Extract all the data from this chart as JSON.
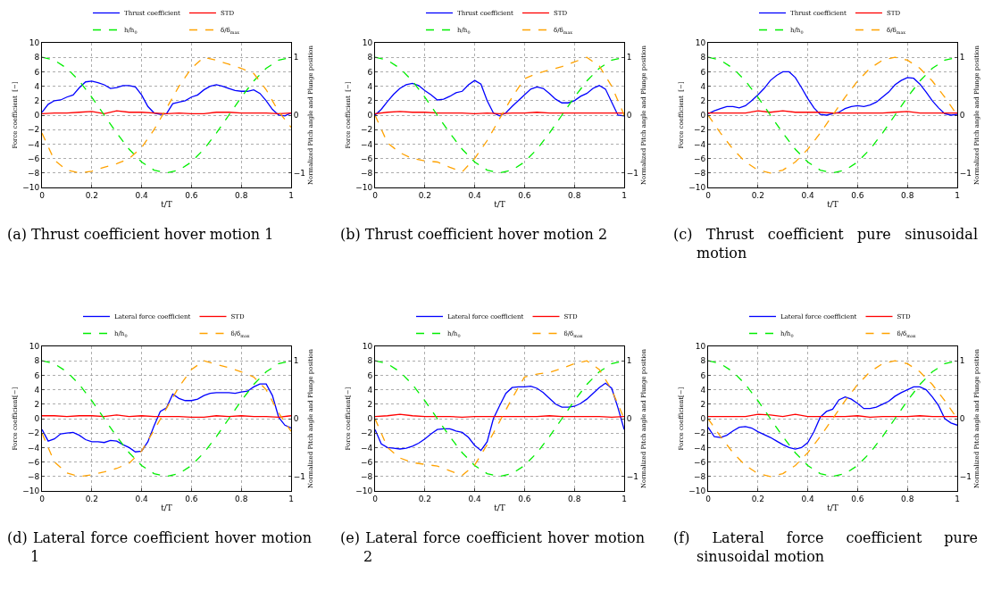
{
  "chart_data": [
    {
      "type": "line",
      "annotations": [
        "(a) Thrust coefficient hover motion 1"
      ],
      "xlabel": "t/T",
      "ylabel": "Force coefficient  [−]",
      "y2label": "Normalized Pitch angle and Plunge position",
      "xlim": [
        0,
        1
      ],
      "xticks": [
        0,
        0.2,
        0.4,
        0.6,
        0.8,
        1
      ],
      "ylim": [
        -10,
        10
      ],
      "yticks": [
        -10,
        -8,
        -6,
        -4,
        -2,
        0,
        2,
        4,
        6,
        8,
        10
      ],
      "y2lim": [
        -1.25,
        1.25
      ],
      "y2ticks": [
        -1,
        0,
        1
      ],
      "grid": true,
      "legend": "top",
      "x": [
        0,
        0.025,
        0.05,
        0.075,
        0.1,
        0.125,
        0.15,
        0.175,
        0.2,
        0.225,
        0.25,
        0.275,
        0.3,
        0.325,
        0.35,
        0.375,
        0.4,
        0.425,
        0.45,
        0.475,
        0.5,
        0.525,
        0.55,
        0.575,
        0.6,
        0.625,
        0.65,
        0.675,
        0.7,
        0.725,
        0.75,
        0.775,
        0.8,
        0.825,
        0.85,
        0.875,
        0.9,
        0.925,
        0.95,
        0.975,
        1
      ],
      "series": [
        {
          "name": "Thrust coefficient",
          "color": "#0000ff",
          "line_style": "solid",
          "values": [
            0.4,
            1.5,
            2.0,
            2.1,
            2.5,
            2.8,
            3.8,
            4.6,
            4.7,
            4.5,
            4.2,
            3.7,
            3.8,
            4.1,
            4.1,
            3.9,
            2.8,
            1.2,
            0.3,
            0.1,
            0.2,
            1.6,
            1.8,
            2.0,
            2.5,
            2.8,
            3.5,
            4.0,
            4.2,
            4.0,
            3.7,
            3.4,
            3.3,
            3.3,
            3.5,
            3.0,
            2.0,
            0.8,
            0.0,
            -0.1,
            0.3
          ]
        },
        {
          "name": "STD",
          "color": "#ff0000",
          "line_style": "solid",
          "x": [
            0,
            0.05,
            0.1,
            0.15,
            0.2,
            0.25,
            0.3,
            0.35,
            0.4,
            0.45,
            0.5,
            0.55,
            0.6,
            0.65,
            0.7,
            0.75,
            0.8,
            0.85,
            0.9,
            0.95,
            1
          ],
          "values": [
            0.2,
            0.3,
            0.3,
            0.4,
            0.5,
            0.2,
            0.6,
            0.4,
            0.4,
            0.3,
            0.2,
            0.3,
            0.2,
            0.2,
            0.4,
            0.4,
            0.3,
            0.3,
            0.3,
            0.2,
            0.3
          ]
        },
        {
          "name": "h/h$_{0}$",
          "color": "#00ee00",
          "line_style": "dashed",
          "axis": "y2",
          "x": [
            0,
            0.05,
            0.1,
            0.15,
            0.2,
            0.25,
            0.3,
            0.35,
            0.4,
            0.45,
            0.5,
            0.55,
            0.6,
            0.65,
            0.7,
            0.75,
            0.8,
            0.85,
            0.9,
            0.95,
            1
          ],
          "values": [
            1,
            0.95,
            0.81,
            0.59,
            0.31,
            0,
            -0.31,
            -0.59,
            -0.81,
            -0.95,
            -1,
            -0.95,
            -0.81,
            -0.59,
            -0.31,
            0,
            0.31,
            0.59,
            0.81,
            0.95,
            1
          ]
        },
        {
          "name": "δ/δ$_{max}$",
          "color": "#ffa200",
          "line_style": "dashed",
          "axis": "y2",
          "x": [
            0,
            0.05,
            0.1,
            0.15,
            0.2,
            0.25,
            0.3,
            0.35,
            0.4,
            0.45,
            0.5,
            0.55,
            0.6,
            0.65,
            0.7,
            0.75,
            0.8,
            0.85,
            0.9,
            0.95,
            1
          ],
          "values": [
            -0.31,
            -0.78,
            -0.95,
            -1,
            -0.97,
            -0.9,
            -0.84,
            -0.75,
            -0.56,
            -0.25,
            0.12,
            0.5,
            0.81,
            1,
            0.95,
            0.88,
            0.81,
            0.72,
            0.44,
            0.06,
            -0.21
          ]
        }
      ]
    },
    {
      "type": "line",
      "annotations": [
        "(b) Thrust coefficient hover motion 2"
      ],
      "xlabel": "t/T",
      "ylabel": "Force coefficient  [−]",
      "y2label": "Normalized Pitch angle and Plunge position",
      "xlim": [
        0,
        1
      ],
      "xticks": [
        0,
        0.2,
        0.4,
        0.6,
        0.8,
        1
      ],
      "ylim": [
        -10,
        10
      ],
      "yticks": [
        -10,
        -8,
        -6,
        -4,
        -2,
        0,
        2,
        4,
        6,
        8,
        10
      ],
      "y2lim": [
        -1.25,
        1.25
      ],
      "y2ticks": [
        -1,
        0,
        1
      ],
      "grid": true,
      "legend": "top",
      "x": [
        0,
        0.025,
        0.05,
        0.075,
        0.1,
        0.125,
        0.15,
        0.175,
        0.2,
        0.225,
        0.25,
        0.275,
        0.3,
        0.325,
        0.35,
        0.375,
        0.4,
        0.425,
        0.45,
        0.475,
        0.5,
        0.525,
        0.55,
        0.575,
        0.6,
        0.625,
        0.65,
        0.675,
        0.7,
        0.725,
        0.75,
        0.775,
        0.8,
        0.825,
        0.85,
        0.875,
        0.9,
        0.925,
        0.95,
        0.975,
        1
      ],
      "series": [
        {
          "name": "Thrust coefficient",
          "color": "#0000ff",
          "line_style": "solid",
          "values": [
            0.0,
            0.8,
            1.9,
            2.9,
            3.7,
            4.2,
            4.4,
            4.1,
            3.4,
            2.8,
            2.1,
            2.2,
            2.6,
            3.1,
            3.3,
            4.2,
            4.8,
            4.3,
            2.0,
            0.3,
            -0.1,
            0.3,
            1.2,
            2.0,
            2.8,
            3.6,
            3.9,
            3.7,
            3.0,
            2.2,
            1.7,
            1.7,
            2.0,
            2.6,
            3.0,
            3.7,
            4.1,
            3.6,
            1.8,
            0.0,
            -0.1
          ]
        },
        {
          "name": "STD",
          "color": "#ff0000",
          "line_style": "solid",
          "x": [
            0,
            0.05,
            0.1,
            0.15,
            0.2,
            0.25,
            0.3,
            0.35,
            0.4,
            0.45,
            0.5,
            0.55,
            0.6,
            0.65,
            0.7,
            0.75,
            0.8,
            0.85,
            0.9,
            0.95,
            1
          ],
          "values": [
            0.2,
            0.4,
            0.5,
            0.4,
            0.4,
            0.3,
            0.3,
            0.3,
            0.2,
            0.3,
            0.2,
            0.3,
            0.3,
            0.4,
            0.3,
            0.3,
            0.3,
            0.3,
            0.3,
            0.3,
            0.3
          ]
        },
        {
          "name": "h/h$_{0}$",
          "color": "#00ee00",
          "line_style": "dashed",
          "axis": "y2",
          "x": [
            0,
            0.05,
            0.1,
            0.15,
            0.2,
            0.25,
            0.3,
            0.35,
            0.4,
            0.45,
            0.5,
            0.55,
            0.6,
            0.65,
            0.7,
            0.75,
            0.8,
            0.85,
            0.9,
            0.95,
            1
          ],
          "values": [
            1,
            0.95,
            0.81,
            0.59,
            0.31,
            0,
            -0.31,
            -0.59,
            -0.81,
            -0.95,
            -1,
            -0.95,
            -0.81,
            -0.59,
            -0.31,
            0,
            0.31,
            0.59,
            0.81,
            0.95,
            1
          ]
        },
        {
          "name": "δ/δ$_{max}$",
          "color": "#ffa200",
          "line_style": "dashed",
          "axis": "y2",
          "x": [
            0,
            0.05,
            0.1,
            0.15,
            0.2,
            0.25,
            0.3,
            0.35,
            0.4,
            0.45,
            0.5,
            0.55,
            0.6,
            0.65,
            0.7,
            0.75,
            0.8,
            0.85,
            0.9,
            0.95,
            1
          ],
          "values": [
            0,
            -0.48,
            -0.65,
            -0.75,
            -0.79,
            -0.81,
            -0.9,
            -0.98,
            -0.75,
            -0.44,
            -0.06,
            0.31,
            0.63,
            0.72,
            0.78,
            0.84,
            0.92,
            1.0,
            0.85,
            0.5,
            0.0
          ]
        }
      ]
    },
    {
      "type": "line",
      "annotations": [
        "(c) Thrust coefficient pure sinusoidal motion"
      ],
      "xlabel": "t/T",
      "ylabel": "Force coefficient  [−]",
      "y2label": "Normalized Pitch angle and Plunge position",
      "xlim": [
        0,
        1
      ],
      "xticks": [
        0,
        0.2,
        0.4,
        0.6,
        0.8,
        1
      ],
      "ylim": [
        -10,
        10
      ],
      "yticks": [
        -10,
        -8,
        -6,
        -4,
        -2,
        0,
        2,
        4,
        6,
        8,
        10
      ],
      "y2lim": [
        -1.25,
        1.25
      ],
      "y2ticks": [
        -1,
        0,
        1
      ],
      "grid": true,
      "legend": "top",
      "x": [
        0,
        0.025,
        0.05,
        0.075,
        0.1,
        0.125,
        0.15,
        0.175,
        0.2,
        0.225,
        0.25,
        0.275,
        0.3,
        0.325,
        0.35,
        0.375,
        0.4,
        0.425,
        0.45,
        0.475,
        0.5,
        0.525,
        0.55,
        0.575,
        0.6,
        0.625,
        0.65,
        0.675,
        0.7,
        0.725,
        0.75,
        0.775,
        0.8,
        0.825,
        0.85,
        0.875,
        0.9,
        0.925,
        0.95,
        0.975,
        1
      ],
      "series": [
        {
          "name": "Thrust coefficient",
          "color": "#0000ff",
          "line_style": "solid",
          "values": [
            0.2,
            0.6,
            0.9,
            1.2,
            1.2,
            1.0,
            1.3,
            2.0,
            2.8,
            3.7,
            4.8,
            5.5,
            6.0,
            6.0,
            5.2,
            3.8,
            2.3,
            1.0,
            0.1,
            0.0,
            0.2,
            0.4,
            0.9,
            1.2,
            1.3,
            1.2,
            1.4,
            1.8,
            2.5,
            3.2,
            4.2,
            4.8,
            5.2,
            5.1,
            4.3,
            3.2,
            2.0,
            1.0,
            0.2,
            0.0,
            0.1
          ]
        },
        {
          "name": "STD",
          "color": "#ff0000",
          "line_style": "solid",
          "x": [
            0,
            0.05,
            0.1,
            0.15,
            0.2,
            0.25,
            0.3,
            0.35,
            0.4,
            0.45,
            0.5,
            0.55,
            0.6,
            0.65,
            0.7,
            0.75,
            0.8,
            0.85,
            0.9,
            0.95,
            1
          ],
          "values": [
            0.3,
            0.3,
            0.3,
            0.3,
            0.6,
            0.4,
            0.6,
            0.4,
            0.4,
            0.4,
            0.3,
            0.3,
            0.3,
            0.3,
            0.3,
            0.4,
            0.5,
            0.3,
            0.3,
            0.3,
            0.3
          ]
        },
        {
          "name": "h/h$_{0}$",
          "color": "#00ee00",
          "line_style": "dashed",
          "axis": "y2",
          "x": [
            0,
            0.05,
            0.1,
            0.15,
            0.2,
            0.25,
            0.3,
            0.35,
            0.4,
            0.45,
            0.5,
            0.55,
            0.6,
            0.65,
            0.7,
            0.75,
            0.8,
            0.85,
            0.9,
            0.95,
            1
          ],
          "values": [
            1,
            0.95,
            0.81,
            0.59,
            0.31,
            0,
            -0.31,
            -0.59,
            -0.81,
            -0.95,
            -1,
            -0.95,
            -0.81,
            -0.59,
            -0.31,
            0,
            0.31,
            0.59,
            0.81,
            0.95,
            1
          ]
        },
        {
          "name": "δ/δ$_{max}$",
          "color": "#ffa200",
          "line_style": "dashed",
          "axis": "y2",
          "x": [
            0,
            0.05,
            0.1,
            0.15,
            0.2,
            0.25,
            0.3,
            0.35,
            0.4,
            0.45,
            0.5,
            0.55,
            0.6,
            0.65,
            0.7,
            0.75,
            0.8,
            0.85,
            0.9,
            0.95,
            1
          ],
          "values": [
            0,
            -0.31,
            -0.59,
            -0.81,
            -0.95,
            -1,
            -0.95,
            -0.81,
            -0.59,
            -0.31,
            0,
            0.31,
            0.59,
            0.81,
            0.95,
            1,
            0.95,
            0.81,
            0.59,
            0.31,
            0
          ]
        }
      ]
    },
    {
      "type": "line",
      "annotations": [
        "(d) Lateral force coefficient hover motion 1"
      ],
      "xlabel": "t/T",
      "ylabel": "Force coefficient[−]",
      "y2label": "Normalized Pitch angle and Plunge position",
      "xlim": [
        0,
        1
      ],
      "xticks": [
        0,
        0.2,
        0.4,
        0.6,
        0.8,
        1
      ],
      "ylim": [
        -10,
        10
      ],
      "yticks": [
        -10,
        -8,
        -6,
        -4,
        -2,
        0,
        2,
        4,
        6,
        8,
        10
      ],
      "y2lim": [
        -1.25,
        1.25
      ],
      "y2ticks": [
        -1,
        0,
        1
      ],
      "grid": true,
      "legend": "top",
      "x": [
        0,
        0.025,
        0.05,
        0.075,
        0.1,
        0.125,
        0.15,
        0.175,
        0.2,
        0.225,
        0.25,
        0.275,
        0.3,
        0.325,
        0.35,
        0.375,
        0.4,
        0.425,
        0.45,
        0.475,
        0.5,
        0.525,
        0.55,
        0.575,
        0.6,
        0.625,
        0.65,
        0.675,
        0.7,
        0.725,
        0.75,
        0.775,
        0.8,
        0.825,
        0.85,
        0.875,
        0.9,
        0.925,
        0.95,
        0.975,
        1
      ],
      "series": [
        {
          "name": "Lateral force coefficient",
          "color": "#0000ff",
          "line_style": "solid",
          "values": [
            -1.5,
            -3.1,
            -2.8,
            -2.1,
            -2.0,
            -1.9,
            -2.3,
            -2.9,
            -3.2,
            -3.2,
            -3.3,
            -3.0,
            -3.1,
            -3.6,
            -4.0,
            -4.6,
            -4.5,
            -3.2,
            -1.0,
            1.0,
            1.5,
            3.4,
            2.8,
            2.5,
            2.5,
            2.7,
            3.2,
            3.5,
            3.6,
            3.6,
            3.6,
            3.5,
            3.7,
            3.8,
            4.4,
            4.8,
            4.8,
            3.2,
            0.2,
            -0.9,
            -1.3
          ]
        },
        {
          "name": "STD",
          "color": "#ff0000",
          "line_style": "solid",
          "x": [
            0,
            0.05,
            0.1,
            0.15,
            0.2,
            0.25,
            0.3,
            0.35,
            0.4,
            0.45,
            0.5,
            0.55,
            0.6,
            0.65,
            0.7,
            0.75,
            0.8,
            0.85,
            0.9,
            0.95,
            1
          ],
          "values": [
            0.4,
            0.4,
            0.3,
            0.4,
            0.4,
            0.3,
            0.5,
            0.3,
            0.4,
            0.3,
            0.3,
            0.3,
            0.2,
            0.2,
            0.4,
            0.3,
            0.4,
            0.3,
            0.3,
            0.2,
            0.4
          ]
        },
        {
          "name": "h/h$_{0}$",
          "color": "#00ee00",
          "line_style": "dashed",
          "axis": "y2",
          "x": [
            0,
            0.05,
            0.1,
            0.15,
            0.2,
            0.25,
            0.3,
            0.35,
            0.4,
            0.45,
            0.5,
            0.55,
            0.6,
            0.65,
            0.7,
            0.75,
            0.8,
            0.85,
            0.9,
            0.95,
            1
          ],
          "values": [
            1,
            0.95,
            0.81,
            0.59,
            0.31,
            0,
            -0.31,
            -0.59,
            -0.81,
            -0.95,
            -1,
            -0.95,
            -0.81,
            -0.59,
            -0.31,
            0,
            0.31,
            0.59,
            0.81,
            0.95,
            1
          ]
        },
        {
          "name": "δ/δ$_{max}$",
          "color": "#ffa200",
          "line_style": "dashed",
          "axis": "y2",
          "x": [
            0,
            0.05,
            0.1,
            0.15,
            0.2,
            0.25,
            0.3,
            0.35,
            0.4,
            0.45,
            0.5,
            0.55,
            0.6,
            0.65,
            0.7,
            0.75,
            0.8,
            0.85,
            0.9,
            0.95,
            1
          ],
          "values": [
            -0.25,
            -0.75,
            -0.94,
            -1,
            -0.97,
            -0.92,
            -0.86,
            -0.77,
            -0.56,
            -0.2,
            0.18,
            0.55,
            0.85,
            1,
            0.94,
            0.88,
            0.81,
            0.72,
            0.5,
            0.1,
            -0.22
          ]
        }
      ]
    },
    {
      "type": "line",
      "annotations": [
        "(e) Lateral force coefficient hover motion 2"
      ],
      "xlabel": "t/T",
      "ylabel": "Force coefficient[−]",
      "y2label": "Normalized Pitch angle and Plunge position",
      "xlim": [
        0,
        1
      ],
      "xticks": [
        0,
        0.2,
        0.4,
        0.6,
        0.8,
        1
      ],
      "ylim": [
        -10,
        10
      ],
      "yticks": [
        -10,
        -8,
        -6,
        -4,
        -2,
        0,
        2,
        4,
        6,
        8,
        10
      ],
      "y2lim": [
        -1.25,
        1.25
      ],
      "y2ticks": [
        -1,
        0,
        1
      ],
      "grid": true,
      "legend": "top",
      "x": [
        0,
        0.025,
        0.05,
        0.075,
        0.1,
        0.125,
        0.15,
        0.175,
        0.2,
        0.225,
        0.25,
        0.275,
        0.3,
        0.325,
        0.35,
        0.375,
        0.4,
        0.425,
        0.45,
        0.475,
        0.5,
        0.525,
        0.55,
        0.575,
        0.6,
        0.625,
        0.65,
        0.675,
        0.7,
        0.725,
        0.75,
        0.775,
        0.8,
        0.825,
        0.85,
        0.875,
        0.9,
        0.925,
        0.95,
        0.975,
        1
      ],
      "series": [
        {
          "name": "Lateral force coefficient",
          "color": "#0000ff",
          "line_style": "solid",
          "values": [
            -1.5,
            -3.5,
            -4.0,
            -4.1,
            -4.2,
            -4.1,
            -3.8,
            -3.4,
            -2.8,
            -2.1,
            -1.5,
            -1.4,
            -1.4,
            -1.7,
            -1.9,
            -2.6,
            -3.7,
            -4.4,
            -3.2,
            0.0,
            1.8,
            3.5,
            4.3,
            4.4,
            4.4,
            4.5,
            4.2,
            3.6,
            2.8,
            2.0,
            1.6,
            1.6,
            1.7,
            2.1,
            2.7,
            3.5,
            4.3,
            4.9,
            4.2,
            1.5,
            -1.5
          ]
        },
        {
          "name": "STD",
          "color": "#ff0000",
          "line_style": "solid",
          "x": [
            0,
            0.05,
            0.1,
            0.15,
            0.2,
            0.25,
            0.3,
            0.35,
            0.4,
            0.45,
            0.5,
            0.55,
            0.6,
            0.65,
            0.7,
            0.75,
            0.8,
            0.85,
            0.9,
            0.95,
            1
          ],
          "values": [
            0.3,
            0.4,
            0.6,
            0.4,
            0.3,
            0.3,
            0.3,
            0.2,
            0.3,
            0.3,
            0.3,
            0.3,
            0.3,
            0.3,
            0.4,
            0.3,
            0.3,
            0.3,
            0.3,
            0.2,
            0.3
          ]
        },
        {
          "name": "h/h$_{0}$",
          "color": "#00ee00",
          "line_style": "dashed",
          "axis": "y2",
          "x": [
            0,
            0.05,
            0.1,
            0.15,
            0.2,
            0.25,
            0.3,
            0.35,
            0.4,
            0.45,
            0.5,
            0.55,
            0.6,
            0.65,
            0.7,
            0.75,
            0.8,
            0.85,
            0.9,
            0.95,
            1
          ],
          "values": [
            1,
            0.95,
            0.81,
            0.59,
            0.31,
            0,
            -0.31,
            -0.59,
            -0.81,
            -0.95,
            -1,
            -0.95,
            -0.81,
            -0.59,
            -0.31,
            0,
            0.31,
            0.59,
            0.81,
            0.95,
            1
          ]
        },
        {
          "name": "δ/δ$_{max}$",
          "color": "#ffa200",
          "line_style": "dashed",
          "axis": "y2",
          "x": [
            0,
            0.05,
            0.1,
            0.15,
            0.2,
            0.25,
            0.3,
            0.35,
            0.4,
            0.45,
            0.5,
            0.55,
            0.6,
            0.65,
            0.7,
            0.75,
            0.8,
            0.85,
            0.9,
            0.95,
            1
          ],
          "values": [
            0,
            -0.5,
            -0.68,
            -0.76,
            -0.79,
            -0.82,
            -0.9,
            -0.98,
            -0.8,
            -0.45,
            -0.05,
            0.35,
            0.72,
            0.77,
            0.8,
            0.87,
            0.95,
            1,
            0.85,
            0.5,
            0.0
          ]
        }
      ]
    },
    {
      "type": "line",
      "annotations": [
        "(f) Lateral force coefficient pure sinusoidal motion"
      ],
      "xlabel": "t/T",
      "ylabel": "Force coefficient[−]",
      "y2label": "Normalized Pitch angle and Plunge position",
      "xlim": [
        0,
        1
      ],
      "xticks": [
        0,
        0.2,
        0.4,
        0.6,
        0.8,
        1
      ],
      "ylim": [
        -10,
        10
      ],
      "yticks": [
        -10,
        -8,
        -6,
        -4,
        -2,
        0,
        2,
        4,
        6,
        8,
        10
      ],
      "y2lim": [
        -1.25,
        1.25
      ],
      "y2ticks": [
        -1,
        0,
        1
      ],
      "grid": true,
      "legend": "top",
      "x": [
        0,
        0.025,
        0.05,
        0.075,
        0.1,
        0.125,
        0.15,
        0.175,
        0.2,
        0.225,
        0.25,
        0.275,
        0.3,
        0.325,
        0.35,
        0.375,
        0.4,
        0.425,
        0.45,
        0.475,
        0.5,
        0.525,
        0.55,
        0.575,
        0.6,
        0.625,
        0.65,
        0.675,
        0.7,
        0.725,
        0.75,
        0.775,
        0.8,
        0.825,
        0.85,
        0.875,
        0.9,
        0.925,
        0.95,
        0.975,
        1
      ],
      "series": [
        {
          "name": "Lateral force coefficient",
          "color": "#0000ff",
          "line_style": "solid",
          "values": [
            -1.2,
            -2.5,
            -2.6,
            -2.3,
            -1.7,
            -1.2,
            -1.1,
            -1.3,
            -1.8,
            -2.2,
            -2.6,
            -3.1,
            -3.6,
            -4.0,
            -4.2,
            -4.0,
            -3.3,
            -1.8,
            0.2,
            1.0,
            1.3,
            2.6,
            3.0,
            2.7,
            2.1,
            1.4,
            1.4,
            1.6,
            2.0,
            2.4,
            3.1,
            3.6,
            4.0,
            4.4,
            4.4,
            4.0,
            3.0,
            1.8,
            0.0,
            -0.6,
            -0.9
          ]
        },
        {
          "name": "STD",
          "color": "#ff0000",
          "line_style": "solid",
          "x": [
            0,
            0.05,
            0.1,
            0.15,
            0.2,
            0.25,
            0.3,
            0.35,
            0.4,
            0.45,
            0.5,
            0.55,
            0.6,
            0.65,
            0.7,
            0.75,
            0.8,
            0.85,
            0.9,
            0.95,
            1
          ],
          "values": [
            0.3,
            0.3,
            0.3,
            0.3,
            0.6,
            0.5,
            0.3,
            0.6,
            0.3,
            0.3,
            0.3,
            0.3,
            0.4,
            0.2,
            0.3,
            0.3,
            0.3,
            0.4,
            0.3,
            0.3,
            0.3
          ]
        },
        {
          "name": "h/h$_{0}$",
          "color": "#00ee00",
          "line_style": "dashed",
          "axis": "y2",
          "x": [
            0,
            0.05,
            0.1,
            0.15,
            0.2,
            0.25,
            0.3,
            0.35,
            0.4,
            0.45,
            0.5,
            0.55,
            0.6,
            0.65,
            0.7,
            0.75,
            0.8,
            0.85,
            0.9,
            0.95,
            1
          ],
          "values": [
            1,
            0.95,
            0.81,
            0.59,
            0.31,
            0,
            -0.31,
            -0.59,
            -0.81,
            -0.95,
            -1,
            -0.95,
            -0.81,
            -0.59,
            -0.31,
            0,
            0.31,
            0.59,
            0.81,
            0.95,
            1
          ]
        },
        {
          "name": "δ/δ$_{max}$",
          "color": "#ffa200",
          "line_style": "dashed",
          "axis": "y2",
          "x": [
            0,
            0.05,
            0.1,
            0.15,
            0.2,
            0.25,
            0.3,
            0.35,
            0.4,
            0.45,
            0.5,
            0.55,
            0.6,
            0.65,
            0.7,
            0.75,
            0.8,
            0.85,
            0.9,
            0.95,
            1
          ],
          "values": [
            0,
            -0.31,
            -0.59,
            -0.81,
            -0.95,
            -1,
            -0.95,
            -0.81,
            -0.59,
            -0.31,
            0,
            0.31,
            0.59,
            0.81,
            0.95,
            1,
            0.95,
            0.81,
            0.59,
            0.31,
            0
          ]
        }
      ]
    }
  ]
}
